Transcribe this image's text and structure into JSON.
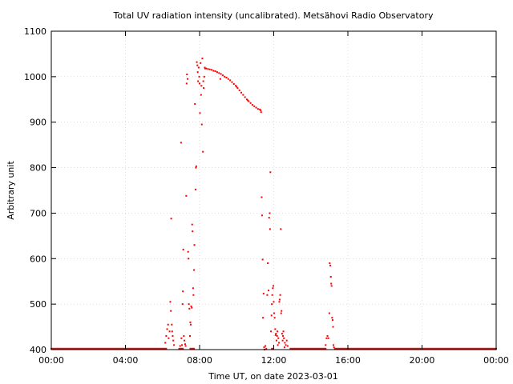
{
  "chart_data": {
    "type": "scatter",
    "title": "Total UV radiation intensity (uncalibrated). Metsähovi Radio Observatory",
    "xlabel": "Time UT, on date 2023-03-01",
    "ylabel": "Arbitrary unit",
    "xlim_hours": [
      0,
      24
    ],
    "ylim": [
      400,
      1100
    ],
    "x_ticks": [
      {
        "hour": 0,
        "label": "00:00"
      },
      {
        "hour": 4,
        "label": "04:00"
      },
      {
        "hour": 8,
        "label": "08:00"
      },
      {
        "hour": 12,
        "label": "12:00"
      },
      {
        "hour": 16,
        "label": "16:00"
      },
      {
        "hour": 20,
        "label": "20:00"
      },
      {
        "hour": 24,
        "label": "00:00"
      }
    ],
    "y_ticks": [
      400,
      500,
      600,
      700,
      800,
      900,
      1000,
      1100
    ],
    "grid": true,
    "marker_color": "#ff0000",
    "series": [
      {
        "baseline": 402,
        "baseline_ranges_hours": [
          [
            0.0,
            6.2
          ],
          [
            6.9,
            7.1
          ],
          [
            7.5,
            7.7
          ],
          [
            11.9,
            11.95
          ],
          [
            12.9,
            14.8
          ],
          [
            15.3,
            24.0
          ]
        ],
        "points": [
          [
            6.15,
            415
          ],
          [
            6.2,
            430
          ],
          [
            6.25,
            445
          ],
          [
            6.3,
            455
          ],
          [
            6.33,
            425
          ],
          [
            6.38,
            440
          ],
          [
            6.42,
            505
          ],
          [
            6.45,
            485
          ],
          [
            6.47,
            688
          ],
          [
            6.5,
            455
          ],
          [
            6.52,
            440
          ],
          [
            6.55,
            430
          ],
          [
            6.58,
            420
          ],
          [
            6.62,
            410
          ],
          [
            6.95,
            408
          ],
          [
            7.0,
            855
          ],
          [
            7.02,
            425
          ],
          [
            7.05,
            410
          ],
          [
            7.08,
            500
          ],
          [
            7.1,
            528
          ],
          [
            7.12,
            620
          ],
          [
            7.15,
            430
          ],
          [
            7.18,
            420
          ],
          [
            7.22,
            412
          ],
          [
            7.25,
            408
          ],
          [
            7.28,
            738
          ],
          [
            7.3,
            985
          ],
          [
            7.32,
            1005
          ],
          [
            7.35,
            995
          ],
          [
            7.38,
            615
          ],
          [
            7.4,
            600
          ],
          [
            7.42,
            500
          ],
          [
            7.45,
            490
          ],
          [
            7.48,
            430
          ],
          [
            7.5,
            460
          ],
          [
            7.52,
            455
          ],
          [
            7.55,
            495
          ],
          [
            7.58,
            492
          ],
          [
            7.6,
            675
          ],
          [
            7.62,
            660
          ],
          [
            7.65,
            535
          ],
          [
            7.67,
            520
          ],
          [
            7.7,
            575
          ],
          [
            7.72,
            630
          ],
          [
            7.75,
            940
          ],
          [
            7.78,
            752
          ],
          [
            7.8,
            800
          ],
          [
            7.82,
            803
          ],
          [
            7.85,
            1032
          ],
          [
            7.88,
            1025
          ],
          [
            7.9,
            1010
          ],
          [
            7.92,
            990
          ],
          [
            7.95,
            1020
          ],
          [
            7.98,
            1000
          ],
          [
            8.0,
            985
          ],
          [
            8.02,
            920
          ],
          [
            8.05,
            1030
          ],
          [
            8.08,
            960
          ],
          [
            8.1,
            980
          ],
          [
            8.12,
            895
          ],
          [
            8.15,
            1040
          ],
          [
            8.18,
            835
          ],
          [
            8.2,
            990
          ],
          [
            8.22,
            975
          ],
          [
            8.25,
            1000
          ],
          [
            8.28,
            1020
          ],
          [
            8.3,
            1018
          ],
          [
            8.35,
            1018
          ],
          [
            8.45,
            1017
          ],
          [
            8.55,
            1016
          ],
          [
            8.65,
            1015
          ],
          [
            8.75,
            1013
          ],
          [
            8.85,
            1012
          ],
          [
            8.95,
            1010
          ],
          [
            9.05,
            1008
          ],
          [
            9.15,
            1006
          ],
          [
            9.25,
            1003
          ],
          [
            9.35,
            1000
          ],
          [
            9.45,
            998
          ],
          [
            9.55,
            995
          ],
          [
            9.65,
            992
          ],
          [
            9.75,
            988
          ],
          [
            9.85,
            984
          ],
          [
            9.95,
            980
          ],
          [
            10.05,
            975
          ],
          [
            10.15,
            970
          ],
          [
            10.25,
            965
          ],
          [
            10.35,
            960
          ],
          [
            10.45,
            955
          ],
          [
            10.55,
            950
          ],
          [
            10.65,
            946
          ],
          [
            10.75,
            942
          ],
          [
            10.85,
            938
          ],
          [
            10.95,
            935
          ],
          [
            11.05,
            932
          ],
          [
            11.15,
            929
          ],
          [
            11.25,
            928
          ],
          [
            11.3,
            926
          ],
          [
            11.32,
            922
          ],
          [
            9.12,
            995
          ],
          [
            10.0,
            978
          ],
          [
            10.6,
            948
          ],
          [
            11.35,
            735
          ],
          [
            11.37,
            695
          ],
          [
            11.4,
            598
          ],
          [
            11.42,
            470
          ],
          [
            11.45,
            523
          ],
          [
            11.48,
            405
          ],
          [
            11.5,
            400
          ],
          [
            11.55,
            408
          ],
          [
            11.6,
            402
          ],
          [
            11.65,
            520
          ],
          [
            11.68,
            590
          ],
          [
            11.72,
            530
          ],
          [
            11.75,
            690
          ],
          [
            11.78,
            700
          ],
          [
            11.8,
            665
          ],
          [
            11.82,
            790
          ],
          [
            11.85,
            440
          ],
          [
            11.88,
            475
          ],
          [
            11.9,
            500
          ],
          [
            11.92,
            520
          ],
          [
            11.95,
            535
          ],
          [
            11.98,
            540
          ],
          [
            12.0,
            505
          ],
          [
            12.02,
            480
          ],
          [
            12.05,
            470
          ],
          [
            12.08,
            445
          ],
          [
            12.1,
            432
          ],
          [
            12.12,
            435
          ],
          [
            12.15,
            420
          ],
          [
            12.18,
            430
          ],
          [
            12.2,
            440
          ],
          [
            12.22,
            410
          ],
          [
            12.25,
            425
          ],
          [
            12.28,
            415
          ],
          [
            12.3,
            505
          ],
          [
            12.32,
            510
          ],
          [
            12.35,
            520
          ],
          [
            12.38,
            665
          ],
          [
            12.4,
            480
          ],
          [
            12.42,
            485
          ],
          [
            12.45,
            435
          ],
          [
            12.48,
            420
          ],
          [
            12.5,
            430
          ],
          [
            12.52,
            440
          ],
          [
            12.55,
            425
          ],
          [
            12.58,
            405
          ],
          [
            12.6,
            415
          ],
          [
            12.65,
            410
          ],
          [
            12.7,
            420
          ],
          [
            12.75,
            408
          ],
          [
            14.8,
            410
          ],
          [
            14.85,
            425
          ],
          [
            14.9,
            430
          ],
          [
            14.95,
            425
          ],
          [
            15.0,
            480
          ],
          [
            15.02,
            590
          ],
          [
            15.05,
            585
          ],
          [
            15.08,
            560
          ],
          [
            15.1,
            545
          ],
          [
            15.12,
            540
          ],
          [
            15.15,
            470
          ],
          [
            15.18,
            465
          ],
          [
            15.2,
            450
          ],
          [
            15.22,
            410
          ],
          [
            15.25,
            405
          ]
        ]
      }
    ]
  }
}
